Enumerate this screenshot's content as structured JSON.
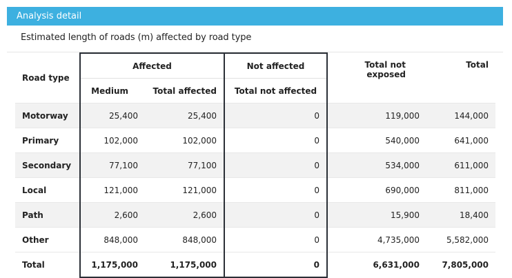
{
  "header": {
    "title": "Analysis detail"
  },
  "subtitle": "Estimated length of roads (m) affected by road type",
  "columns": {
    "road_type": "Road type",
    "affected": "Affected",
    "not_affected": "Not affected",
    "total_not_exposed": "Total not exposed",
    "total": "Total",
    "medium": "Medium",
    "total_affected": "Total affected",
    "total_not_affected": "Total not affected"
  },
  "rows": [
    {
      "type": "Motorway",
      "medium": "25,400",
      "total_affected": "25,400",
      "total_not_affected": "0",
      "total_not_exposed": "119,000",
      "total": "144,000"
    },
    {
      "type": "Primary",
      "medium": "102,000",
      "total_affected": "102,000",
      "total_not_affected": "0",
      "total_not_exposed": "540,000",
      "total": "641,000"
    },
    {
      "type": "Secondary",
      "medium": "77,100",
      "total_affected": "77,100",
      "total_not_affected": "0",
      "total_not_exposed": "534,000",
      "total": "611,000"
    },
    {
      "type": "Local",
      "medium": "121,000",
      "total_affected": "121,000",
      "total_not_affected": "0",
      "total_not_exposed": "690,000",
      "total": "811,000"
    },
    {
      "type": "Path",
      "medium": "2,600",
      "total_affected": "2,600",
      "total_not_affected": "0",
      "total_not_exposed": "15,900",
      "total": "18,400"
    },
    {
      "type": "Other",
      "medium": "848,000",
      "total_affected": "848,000",
      "total_not_affected": "0",
      "total_not_exposed": "4,735,000",
      "total": "5,582,000"
    }
  ],
  "totals": {
    "type": "Total",
    "medium": "1,175,000",
    "total_affected": "1,175,000",
    "total_not_affected": "0",
    "total_not_exposed": "6,631,000",
    "total": "7,805,000"
  },
  "colors": {
    "header_bg": "#3db0e0",
    "stripe": "#f2f2f2",
    "box_border": "#2a2f36"
  }
}
